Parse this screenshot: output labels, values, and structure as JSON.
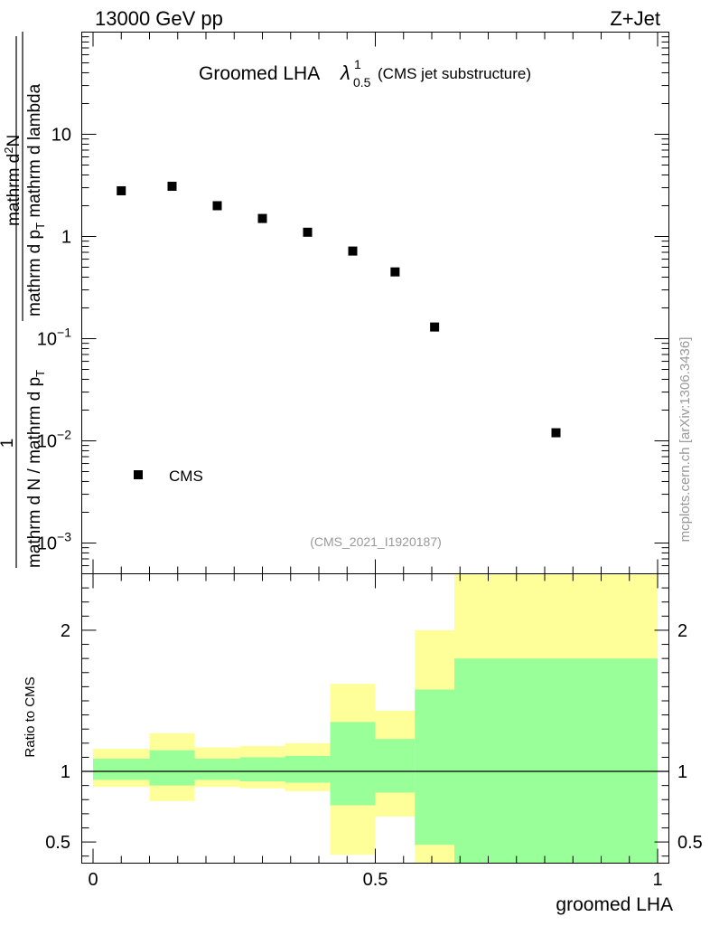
{
  "header": {
    "left": "13000 GeV pp",
    "right": "Z+Jet"
  },
  "title": {
    "main": "Groomed LHA",
    "lambda": "λ",
    "sup": "1",
    "sub": "0.5",
    "suffix": "(CMS jet substructure)"
  },
  "side_label": "mcplots.cern.ch [arXiv:1306.3436]",
  "analysis_tag": "(CMS_2021_I1920187)",
  "colors": {
    "inner_band": "#99ff99",
    "outer_band": "#ffff99",
    "markers": "#000000"
  },
  "chart_data": [
    {
      "type": "scatter",
      "title": "Groomed LHA λ^1_0.5 (CMS jet substructure)",
      "xlabel": "groomed LHA",
      "ylabel": "1 / (mathrm d N / mathrm d p_T) mathrm d^2N / (mathrm d p_T mathrm d lambda)",
      "ylabel_parts": {
        "num": "mathrm d",
        "num_sup": "2",
        "num_tail": "N",
        "den": "mathrm d p",
        "den_sub": "T",
        "den_tail": " mathrm d lambda",
        "one": "1",
        "norm_den": "mathrm d N / mathrm d p",
        "norm_den_sub": "T"
      },
      "yscale": "log",
      "xlim": [
        -0.02,
        1.02
      ],
      "ylim": [
        0.0005,
        100
      ],
      "yticks": [
        {
          "v": 0.001,
          "base": "10",
          "exp": "−3"
        },
        {
          "v": 0.01,
          "base": "10",
          "exp": "−2"
        },
        {
          "v": 0.1,
          "base": "10",
          "exp": "−1"
        },
        {
          "v": 1,
          "label": "1"
        },
        {
          "v": 10,
          "label": "10"
        }
      ],
      "legend": {
        "entries": [
          "CMS"
        ],
        "position": "bottom-left"
      },
      "series": [
        {
          "name": "CMS",
          "x": [
            0.05,
            0.14,
            0.22,
            0.3,
            0.38,
            0.46,
            0.535,
            0.605,
            0.82
          ],
          "y": [
            2.8,
            3.1,
            2.0,
            1.5,
            1.1,
            0.72,
            0.45,
            0.13,
            0.012
          ]
        }
      ]
    },
    {
      "type": "area",
      "ylabel": "Ratio to CMS",
      "xlabel": "groomed LHA",
      "xlim": [
        -0.02,
        1.02
      ],
      "ylim": [
        0.35,
        2.4
      ],
      "xticks": [
        {
          "v": 0,
          "label": "0"
        },
        {
          "v": 0.5,
          "label": "0.5"
        },
        {
          "v": 1,
          "label": "1"
        }
      ],
      "yticks": [
        {
          "v": 0.5,
          "label": "0.5"
        },
        {
          "v": 1,
          "label": "1"
        },
        {
          "v": 2,
          "label": "2"
        }
      ],
      "bins": [
        {
          "x0": 0.0,
          "x1": 0.1,
          "inner": [
            0.94,
            1.09
          ],
          "outer": [
            0.89,
            1.16
          ]
        },
        {
          "x0": 0.1,
          "x1": 0.18,
          "inner": [
            0.9,
            1.15
          ],
          "outer": [
            0.79,
            1.27
          ]
        },
        {
          "x0": 0.18,
          "x1": 0.26,
          "inner": [
            0.94,
            1.09
          ],
          "outer": [
            0.89,
            1.17
          ]
        },
        {
          "x0": 0.26,
          "x1": 0.34,
          "inner": [
            0.93,
            1.1
          ],
          "outer": [
            0.88,
            1.18
          ]
        },
        {
          "x0": 0.34,
          "x1": 0.42,
          "inner": [
            0.92,
            1.11
          ],
          "outer": [
            0.86,
            1.2
          ]
        },
        {
          "x0": 0.42,
          "x1": 0.5,
          "inner": [
            0.76,
            1.35
          ],
          "outer": [
            0.41,
            1.62
          ]
        },
        {
          "x0": 0.5,
          "x1": 0.57,
          "inner": [
            0.85,
            1.23
          ],
          "outer": [
            0.68,
            1.43
          ]
        },
        {
          "x0": 0.57,
          "x1": 0.64,
          "inner": [
            0.48,
            1.58
          ],
          "outer": [
            0.35,
            2.0
          ]
        },
        {
          "x0": 0.64,
          "x1": 1.0,
          "inner": [
            0.35,
            1.8
          ],
          "outer": [
            0.35,
            2.4
          ]
        }
      ]
    }
  ]
}
